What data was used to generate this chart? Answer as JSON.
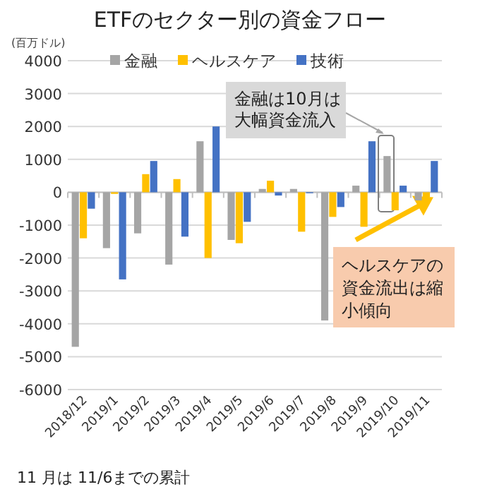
{
  "chart_data": {
    "type": "bar",
    "title": "ETFのセクター別の資金フロー",
    "ylabel": "(百万ドル)",
    "categories": [
      "2018/12",
      "2019/1",
      "2019/2",
      "2019/3",
      "2019/4",
      "2019/5",
      "2019/6",
      "2019/7",
      "2019/8",
      "2019/9",
      "2019/10",
      "2019/11"
    ],
    "series": [
      {
        "name": "金融",
        "color": "#a5a5a5",
        "values": [
          -4700,
          -1700,
          -1250,
          -2200,
          1550,
          -1450,
          100,
          100,
          -3900,
          200,
          1100,
          -250
        ]
      },
      {
        "name": "ヘルスケア",
        "color": "#ffc000",
        "values": [
          -1400,
          -50,
          550,
          400,
          -2000,
          -1550,
          350,
          -1200,
          -750,
          -1050,
          -550,
          -150
        ]
      },
      {
        "name": "技術",
        "color": "#4472c4",
        "values": [
          -500,
          -2650,
          950,
          -1350,
          2000,
          -900,
          -100,
          -30,
          -450,
          1550,
          200,
          950
        ]
      }
    ],
    "ylim": [
      -6000,
      4000
    ],
    "yticks": [
      -6000,
      -5000,
      -4000,
      -3000,
      -2000,
      -1000,
      0,
      1000,
      2000,
      3000,
      4000
    ],
    "grid": "y",
    "legend": "top",
    "annotations": [
      "金融は10月は大幅資金流入",
      {
        "text": "ヘルスケアの資金流出は縮小傾向",
        "x": "2019/11",
        "y": -150
      },
      "11 月は 11/6までの累計"
    ]
  }
}
